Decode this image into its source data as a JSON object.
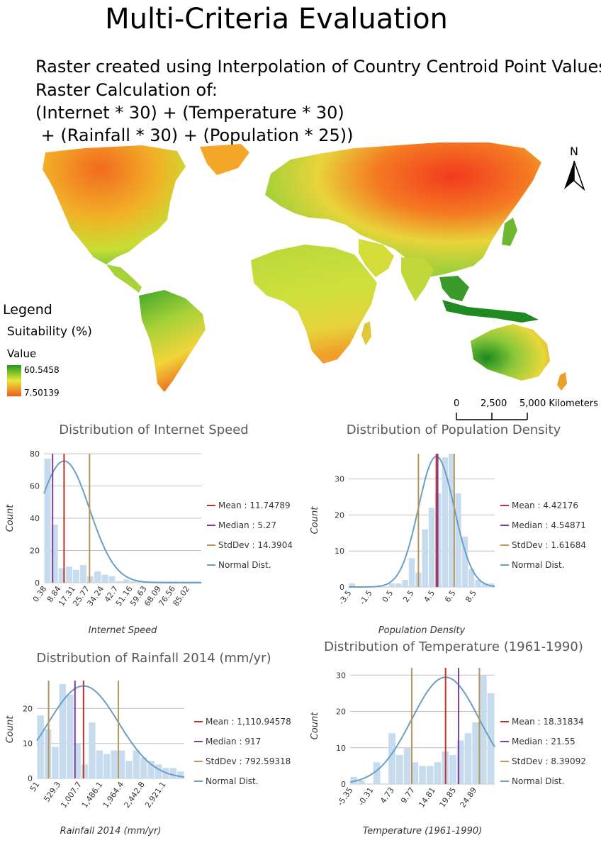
{
  "title": "Multi-Criteria Evaluation",
  "subtitle_lines": [
    "Raster created using Interpolation of Country Centroid Point Values.",
    "Raster Calculation of:",
    "(Internet * 30) + (Temperature * 30)",
    " + (Rainfall * 30) + (Population * 25))"
  ],
  "legend": {
    "title": "Legend",
    "subtitle": "Suitability (%)",
    "value_label": "Value",
    "max": "60.5458",
    "min": "7.50139",
    "colors": {
      "high": "#1f9a1f",
      "mid": "#e8e83a",
      "low": "#f05a1e"
    }
  },
  "north_arrow": "N",
  "scale_bar": {
    "labels": [
      "0",
      "2,500",
      "5,000 Kilometers"
    ]
  },
  "chart_data": [
    {
      "type": "bar",
      "title": "Distribution of Internet Speed",
      "xlabel": "Internet Speed",
      "ylabel": "Count",
      "ylim": [
        0,
        80
      ],
      "yticks": [
        "0",
        "20",
        "40",
        "60",
        "80"
      ],
      "xticks": [
        "0.38",
        "8.84",
        "17.31",
        "25.77",
        "34.24",
        "42.7",
        "51.16",
        "59.63",
        "68.09",
        "76.56",
        "85.02"
      ],
      "values": [
        77,
        36,
        9,
        10,
        8,
        11,
        4,
        7,
        5,
        4,
        1,
        2,
        1,
        1,
        1,
        1,
        1,
        1,
        1,
        1,
        1,
        1
      ],
      "mean": 11.74789,
      "median": 5.27,
      "std": 14.3904,
      "x_range": [
        0.38,
        89.25
      ],
      "legend": [
        "Mean : 11.74789",
        "Median : 5.27",
        "StdDev : 14.3904",
        "Normal Dist."
      ],
      "line_colors": {
        "mean": "#c0302a",
        "median": "#7a3d9a",
        "std": "#b8955a",
        "normal": "#6a9ec5",
        "bar": "#c6dcee"
      }
    },
    {
      "type": "bar",
      "title": "Distribution of Population Density",
      "xlabel": "Population Density",
      "ylabel": "Count",
      "ylim": [
        0,
        37
      ],
      "yticks": [
        "0",
        "10",
        "20",
        "30"
      ],
      "xticks": [
        "-3.5",
        "-1.5",
        "0.5",
        "2.5",
        "4.5",
        "6.5",
        "8.5"
      ],
      "values": [
        1,
        0,
        0,
        0,
        0,
        0,
        1,
        1,
        2,
        8,
        4,
        16,
        22,
        26,
        36,
        37,
        26,
        14,
        5,
        2,
        1,
        1
      ],
      "mean": 4.42176,
      "median": 4.54871,
      "std": 1.61684,
      "x_range": [
        -3.5,
        9.7
      ],
      "legend": [
        "Mean : 4.42176",
        "Median : 4.54871",
        "StdDev : 1.61684",
        "Normal Dist."
      ],
      "line_colors": {
        "mean": "#c0302a",
        "median": "#7a3d9a",
        "std": "#b8955a",
        "normal": "#6a9ec5",
        "bar": "#c6dcee"
      }
    },
    {
      "type": "bar",
      "title": "Distribution of Rainfall 2014 (mm/yr)",
      "xlabel": "Rainfall 2014 (mm/yr)",
      "ylabel": "Count",
      "ylim": [
        0,
        28
      ],
      "yticks": [
        "0",
        "10",
        "20"
      ],
      "xticks": [
        "51",
        "529.3",
        "1,007.7",
        "1,486.1",
        "1,964.4",
        "2,442.8",
        "2,921.1"
      ],
      "values": [
        18,
        14,
        9,
        27,
        24,
        10,
        4,
        16,
        8,
        7,
        8,
        8,
        5,
        8,
        6,
        5,
        4,
        3,
        3,
        2
      ],
      "mean": 1110.94578,
      "median": 917,
      "std": 792.59318,
      "x_range": [
        51,
        3400
      ],
      "legend": [
        "Mean : 1,110.94578",
        "Median : 917",
        "StdDev : 792.59318",
        "Normal Dist."
      ],
      "line_colors": {
        "mean": "#c0302a",
        "median": "#7a3d9a",
        "std": "#b8955a",
        "normal": "#6a9ec5",
        "bar": "#c6dcee"
      }
    },
    {
      "type": "bar",
      "title": "Distribution of Temperature (1961-1990)",
      "xlabel": "Temperature (1961-1990)",
      "ylabel": "Count",
      "ylim": [
        0,
        32
      ],
      "yticks": [
        "0",
        "10",
        "20",
        "30"
      ],
      "xticks": [
        "-5.35",
        "-0.31",
        "4.73",
        "9.77",
        "14.81",
        "19.85",
        "24.89"
      ],
      "values": [
        2,
        1,
        0,
        6,
        0,
        14,
        8,
        10,
        6,
        5,
        5,
        6,
        9,
        8,
        12,
        14,
        17,
        30,
        25
      ],
      "mean": 18.31834,
      "median": 21.55,
      "std": 8.39092,
      "x_range": [
        -5.35,
        30.5
      ],
      "legend": [
        "Mean : 18.31834",
        "Median : 21.55",
        "StdDev : 8.39092",
        "Normal Dist."
      ],
      "line_colors": {
        "mean": "#c0302a",
        "median": "#7a3d9a",
        "std": "#b8955a",
        "normal": "#6a9ec5",
        "bar": "#c6dcee"
      }
    }
  ]
}
